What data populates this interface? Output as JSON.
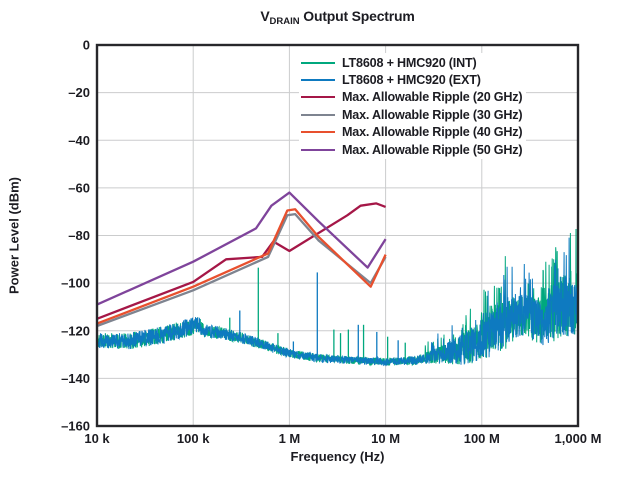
{
  "page": {
    "background": "#ffffff",
    "text_color": "#1c1c22",
    "grid_color": "#cbcccd",
    "frame_color": "#27272b"
  },
  "chart_data": {
    "type": "line",
    "title": {
      "prefix": "V",
      "subscript": "DRAIN",
      "rest": " Output Spectrum"
    },
    "xlabel": "Frequency (Hz)",
    "ylabel": "Power Level (dBm)",
    "x_scale": "log",
    "xlim": [
      10000,
      1000000000
    ],
    "ylim": [
      -160,
      0
    ],
    "grid": true,
    "legend_position": "top-right-inside",
    "x_ticks": [
      {
        "value": 10000,
        "label": "10 k"
      },
      {
        "value": 100000,
        "label": "100 k"
      },
      {
        "value": 1000000,
        "label": "1 M"
      },
      {
        "value": 10000000,
        "label": "10 M"
      },
      {
        "value": 100000000,
        "label": "100 M"
      },
      {
        "value": 1000000000,
        "label": "1,000 M"
      }
    ],
    "y_ticks": [
      {
        "value": 0,
        "label": "0"
      },
      {
        "value": -20,
        "label": "–20"
      },
      {
        "value": -40,
        "label": "–40"
      },
      {
        "value": -60,
        "label": "–60"
      },
      {
        "value": -80,
        "label": "–80"
      },
      {
        "value": -100,
        "label": "–100"
      },
      {
        "value": -120,
        "label": "–120"
      },
      {
        "value": -140,
        "label": "–140"
      },
      {
        "value": -160,
        "label": "–160"
      }
    ],
    "series": [
      {
        "id": "lt8608-hmc920-int",
        "name": "LT8608 + HMC920 (INT)",
        "color": "#00a87e",
        "kind": "noise",
        "seed": 11,
        "floor_points": [
          [
            10000,
            -124
          ],
          [
            20000,
            -124.5
          ],
          [
            40000,
            -122.5
          ],
          [
            70000,
            -120
          ],
          [
            100000,
            -118
          ],
          [
            115000,
            -117.5
          ],
          [
            130000,
            -120
          ],
          [
            200000,
            -121
          ],
          [
            320000,
            -123
          ],
          [
            500000,
            -125.5
          ],
          [
            700000,
            -127.5
          ],
          [
            1000000,
            -129.5
          ],
          [
            2000000,
            -131.5
          ],
          [
            5000000,
            -132.5
          ],
          [
            10000000,
            -133
          ],
          [
            20000000,
            -132.5
          ],
          [
            30000000,
            -131
          ],
          [
            50000000,
            -129
          ],
          [
            70000000,
            -127
          ],
          [
            100000000,
            -124
          ],
          [
            150000000,
            -119
          ],
          [
            220000000,
            -115
          ],
          [
            300000000,
            -114
          ],
          [
            400000000,
            -116
          ],
          [
            500000000,
            -114
          ],
          [
            700000000,
            -110
          ],
          [
            1000000000,
            -110
          ]
        ],
        "fuzz_points": [
          [
            10000,
            3.2
          ],
          [
            70000,
            3.8
          ],
          [
            115000,
            3.5
          ],
          [
            130000,
            2.8
          ],
          [
            300000,
            2.4
          ],
          [
            1000000,
            1.8
          ],
          [
            5000000,
            1.6
          ],
          [
            15000000,
            1.6
          ],
          [
            25000000,
            2.2
          ],
          [
            40000000,
            4
          ],
          [
            60000000,
            6.5
          ],
          [
            100000000,
            9
          ],
          [
            150000000,
            11
          ],
          [
            220000000,
            10
          ],
          [
            300000000,
            9
          ],
          [
            400000000,
            10
          ],
          [
            550000000,
            12
          ],
          [
            700000000,
            13
          ],
          [
            1000000000,
            12
          ]
        ],
        "spike_zone": {
          "from": 25000000,
          "probability": 0.11,
          "gain": 1.3
        },
        "burst_zones": [
          [
            90000000,
            160000000
          ],
          [
            350000000,
            750000000
          ]
        ],
        "spikes": [
          [
            240000,
            -114.5
          ],
          [
            475000,
            -93.5
          ],
          [
            760000,
            -121
          ],
          [
            2900000,
            -119.5
          ],
          [
            3400000,
            -121
          ],
          [
            4100000,
            -119.5
          ],
          [
            5900000,
            -117.5
          ],
          [
            10500000,
            -122.5
          ],
          [
            16000000,
            -125
          ]
        ]
      },
      {
        "id": "lt8608-hmc920-ext",
        "name": "LT8608 + HMC920 (EXT)",
        "color": "#0e7ac0",
        "kind": "noise",
        "seed": 29,
        "floor_points": [
          [
            10000,
            -124
          ],
          [
            20000,
            -124.5
          ],
          [
            40000,
            -122.5
          ],
          [
            70000,
            -120
          ],
          [
            100000,
            -118
          ],
          [
            115000,
            -117.5
          ],
          [
            130000,
            -120
          ],
          [
            200000,
            -121
          ],
          [
            320000,
            -123
          ],
          [
            500000,
            -125.5
          ],
          [
            700000,
            -127.5
          ],
          [
            1000000,
            -129.5
          ],
          [
            2000000,
            -131.5
          ],
          [
            5000000,
            -132.5
          ],
          [
            10000000,
            -133
          ],
          [
            20000000,
            -132.5
          ],
          [
            30000000,
            -131
          ],
          [
            50000000,
            -129
          ],
          [
            70000000,
            -127
          ],
          [
            100000000,
            -124.5
          ],
          [
            150000000,
            -120
          ],
          [
            220000000,
            -114
          ],
          [
            300000000,
            -113.5
          ],
          [
            400000000,
            -117
          ],
          [
            500000000,
            -115
          ],
          [
            700000000,
            -110
          ],
          [
            1000000000,
            -110
          ]
        ],
        "fuzz_points": [
          [
            10000,
            3.2
          ],
          [
            70000,
            3.8
          ],
          [
            115000,
            3.5
          ],
          [
            130000,
            2.8
          ],
          [
            300000,
            2.4
          ],
          [
            1000000,
            1.8
          ],
          [
            5000000,
            1.6
          ],
          [
            15000000,
            1.6
          ],
          [
            25000000,
            2.2
          ],
          [
            40000000,
            4
          ],
          [
            60000000,
            6.5
          ],
          [
            100000000,
            8.5
          ],
          [
            150000000,
            10
          ],
          [
            220000000,
            9.5
          ],
          [
            300000000,
            8.5
          ],
          [
            400000000,
            9.5
          ],
          [
            550000000,
            11
          ],
          [
            700000000,
            12.5
          ],
          [
            1000000000,
            12
          ]
        ],
        "spike_zone": {
          "from": 25000000,
          "probability": 0.11,
          "gain": 1.3
        },
        "burst_zones": [],
        "spikes": [
          [
            305000,
            -111.5
          ],
          [
            1100000,
            -124.5
          ],
          [
            1950000,
            -95.5
          ],
          [
            5200000,
            -117.5
          ],
          [
            8100000,
            -120.5
          ],
          [
            13500000,
            -124
          ]
        ]
      },
      {
        "id": "ripple-20ghz",
        "name": "Max. Allowable Ripple (20 GHz)",
        "color": "#a51747",
        "kind": "line",
        "points": [
          [
            10000,
            -115
          ],
          [
            100000,
            -99.5
          ],
          [
            220000,
            -90
          ],
          [
            520000,
            -89
          ],
          [
            680000,
            -82.5
          ],
          [
            1000000,
            -86.5
          ],
          [
            4000000,
            -71.5
          ],
          [
            5500000,
            -67.5
          ],
          [
            8000000,
            -66.5
          ],
          [
            10000000,
            -68
          ]
        ]
      },
      {
        "id": "ripple-30ghz",
        "name": "Max. Allowable Ripple (30 GHz)",
        "color": "#7e8490",
        "kind": "line",
        "points": [
          [
            10000,
            -118
          ],
          [
            100000,
            -103
          ],
          [
            600000,
            -89
          ],
          [
            950000,
            -71.5
          ],
          [
            1150000,
            -71
          ],
          [
            2000000,
            -82
          ],
          [
            7000000,
            -100
          ],
          [
            10000000,
            -89
          ]
        ]
      },
      {
        "id": "ripple-40ghz",
        "name": "Max. Allowable Ripple (40 GHz)",
        "color": "#e8502e",
        "kind": "line",
        "points": [
          [
            10000,
            -117
          ],
          [
            100000,
            -101.5
          ],
          [
            600000,
            -87.5
          ],
          [
            950000,
            -69.5
          ],
          [
            1150000,
            -69
          ],
          [
            2000000,
            -80.5
          ],
          [
            7000000,
            -101.5
          ],
          [
            10000000,
            -88
          ]
        ]
      },
      {
        "id": "ripple-50ghz",
        "name": "Max. Allowable Ripple (50 GHz)",
        "color": "#7f449b",
        "kind": "line",
        "points": [
          [
            10000,
            -109
          ],
          [
            100000,
            -91
          ],
          [
            450000,
            -77
          ],
          [
            650000,
            -67.5
          ],
          [
            1000000,
            -62
          ],
          [
            2000000,
            -74
          ],
          [
            6500000,
            -93.5
          ],
          [
            10000000,
            -81.5
          ]
        ]
      }
    ]
  }
}
